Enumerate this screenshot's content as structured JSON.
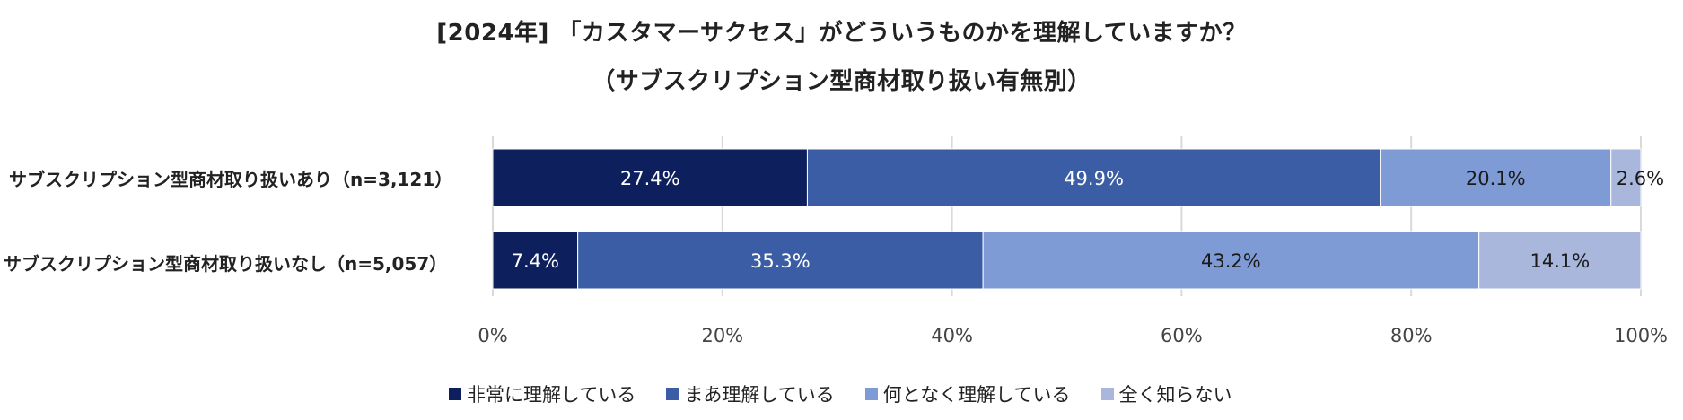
{
  "chart_data": {
    "type": "bar",
    "orientation": "horizontal",
    "stacked": "percent",
    "title": "[2024年] 「カスタマーサクセス」がどういうものかを理解していますか？",
    "subtitle": "（サブスクリプション型商材取り扱い有無別）",
    "categories": [
      "サブスクリプション型商材取り扱いあり（n=3,121）",
      "サブスクリプション型商材取り扱いなし（n=5,057）"
    ],
    "series": [
      {
        "name": "非常に理解している",
        "values": [
          27.4,
          7.4
        ],
        "color": "#0d1f5c",
        "label_color": "#ffffff"
      },
      {
        "name": "まあ理解している",
        "values": [
          49.9,
          35.3
        ],
        "color": "#3a5da5",
        "label_color": "#ffffff"
      },
      {
        "name": "何となく理解している",
        "values": [
          20.1,
          43.2
        ],
        "color": "#7e9bd6",
        "label_color": "#1a1a1a"
      },
      {
        "name": "全く知らない",
        "values": [
          2.6,
          14.1
        ],
        "color": "#a9b7dc",
        "label_color": "#1a1a1a"
      }
    ],
    "data_labels": [
      [
        "27.4%",
        "49.9%",
        "20.1%",
        "2.6%"
      ],
      [
        "7.4%",
        "35.3%",
        "43.2%",
        "14.1%"
      ]
    ],
    "xlim": [
      0,
      100
    ],
    "x_ticks": [
      "0%",
      "20%",
      "40%",
      "60%",
      "80%",
      "100%"
    ],
    "grid": true,
    "legend_position": "bottom"
  }
}
